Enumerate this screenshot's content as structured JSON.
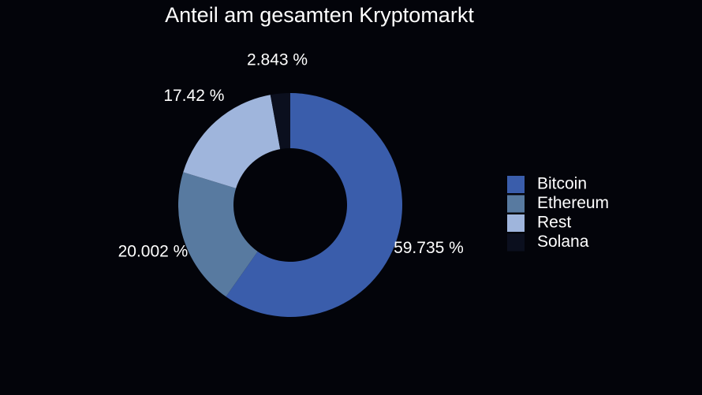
{
  "chart_data": {
    "type": "pie",
    "title": "Anteil am gesamten Kryptomarkt",
    "donut": true,
    "legend_position": "right",
    "slices": [
      {
        "name": "Bitcoin",
        "value": 59.735,
        "label": "59.735 %",
        "color": "#3a5dab"
      },
      {
        "name": "Ethereum",
        "value": 20.002,
        "label": "20.002 %",
        "color": "#587aa0"
      },
      {
        "name": "Rest",
        "value": 17.42,
        "label": "17.42 %",
        "color": "#9fb5dc"
      },
      {
        "name": "Solana",
        "value": 2.843,
        "label": "2.843 %",
        "color": "#0b0f1e"
      }
    ]
  }
}
